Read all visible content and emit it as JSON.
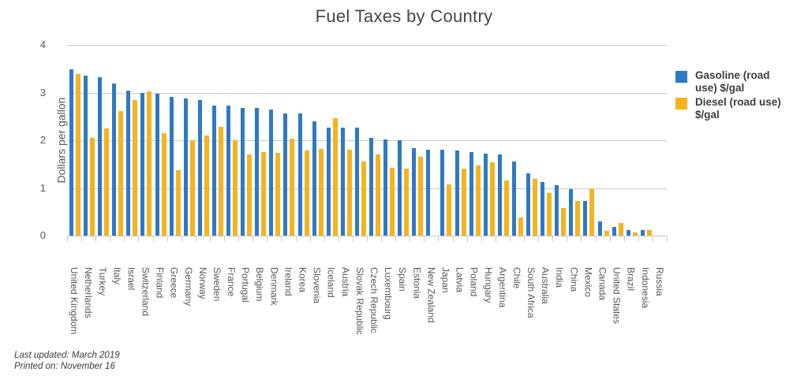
{
  "title": "Fuel Taxes by Country",
  "y_axis": {
    "label": "Dollars per gallon",
    "ticks": [
      0,
      1,
      2,
      3,
      4
    ],
    "max": 4
  },
  "legend": {
    "items": [
      {
        "label": "Gasoline (road use) $/gal",
        "color": "#2E79C5"
      },
      {
        "label": "Diesel (road use) $/gal",
        "color": "#F5B31E"
      }
    ]
  },
  "footer": {
    "line1": "Last updated: March 2019",
    "line2": "Printed on: November 16"
  },
  "chart_data": {
    "type": "bar",
    "title": "Fuel Taxes by Country",
    "xlabel": "",
    "ylabel": "Dollars per gallon",
    "ylim": [
      0,
      4
    ],
    "grid": true,
    "legend_position": "right",
    "categories": [
      "United Kingdom",
      "Netherlands",
      "Turkey",
      "Italy",
      "Israel",
      "Switzerland",
      "Finland",
      "Greece",
      "Germany",
      "Norway",
      "Sweden",
      "France",
      "Portugal",
      "Belgium",
      "Denmark",
      "Ireland",
      "Korea",
      "Slovenia",
      "Iceland",
      "Austria",
      "Slovak Republic",
      "Czech Republic",
      "Luxembourg",
      "Spain",
      "Estonia",
      "New Zealand",
      "Japan",
      "Latvia",
      "Poland",
      "Hungary",
      "Argentina",
      "Chile",
      "South Africa",
      "Australia",
      "India",
      "China",
      "Mexico",
      "Canada",
      "United States",
      "Brazil",
      "Indonesia",
      "Russia"
    ],
    "series": [
      {
        "name": "Gasoline (road use) $/gal",
        "color": "#2E79C5",
        "values": [
          3.48,
          3.35,
          3.32,
          3.19,
          3.04,
          2.99,
          2.97,
          2.91,
          2.87,
          2.85,
          2.73,
          2.72,
          2.67,
          2.67,
          2.64,
          2.57,
          2.56,
          2.39,
          2.26,
          2.26,
          2.26,
          2.05,
          2.01,
          2.0,
          1.84,
          1.81,
          1.8,
          1.78,
          1.75,
          1.72,
          1.7,
          1.55,
          1.3,
          1.12,
          1.05,
          0.97,
          0.73,
          0.29,
          0.19,
          0.12,
          0.11,
          0
        ]
      },
      {
        "name": "Diesel (road use) $/gal",
        "color": "#F5B31E",
        "values": [
          3.39,
          2.05,
          2.24,
          2.62,
          2.85,
          3.02,
          2.15,
          1.38,
          2.0,
          2.1,
          2.28,
          2.0,
          1.7,
          1.76,
          1.74,
          2.03,
          1.78,
          1.82,
          2.46,
          1.81,
          1.56,
          1.7,
          1.42,
          1.41,
          1.66,
          0,
          1.08,
          1.4,
          1.47,
          1.54,
          1.16,
          0.38,
          1.19,
          0.9,
          0.58,
          0.72,
          0.98,
          0.1,
          0.26,
          0.06,
          0.11,
          0
        ]
      }
    ]
  }
}
